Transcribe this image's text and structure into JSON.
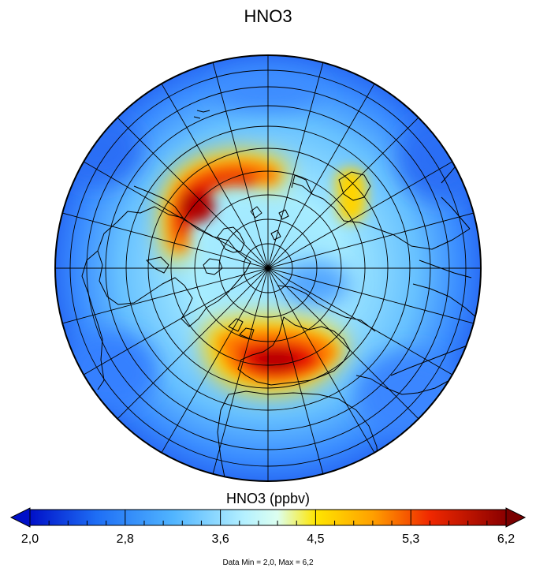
{
  "title": "HNO3",
  "colorbar": {
    "label": "HNO3 (ppbv)",
    "ticks": [
      "2,0",
      "2,8",
      "3,6",
      "4,5",
      "5,3",
      "6,2"
    ],
    "min": 2.0,
    "max": 6.2,
    "extend": "both",
    "colors": [
      "#0010c8",
      "#1e6ef5",
      "#66c4ff",
      "#c8f8ff",
      "#ffe600",
      "#ff8c00",
      "#e81000",
      "#7a0000"
    ]
  },
  "footer": "Data Min = 2,0, Max = 6,2",
  "projection": "north-polar-orthographic",
  "field_description": {
    "background_level": 3.1,
    "maxima": [
      {
        "region": "North America / Canada arc",
        "value": 5.9
      },
      {
        "region": "Europe / Mediterranean arc",
        "value": 6.0
      },
      {
        "region": "Central Siberia",
        "value": 4.6
      }
    ],
    "minima_region": "outer edge of domain",
    "minimum_value": 2.0
  }
}
